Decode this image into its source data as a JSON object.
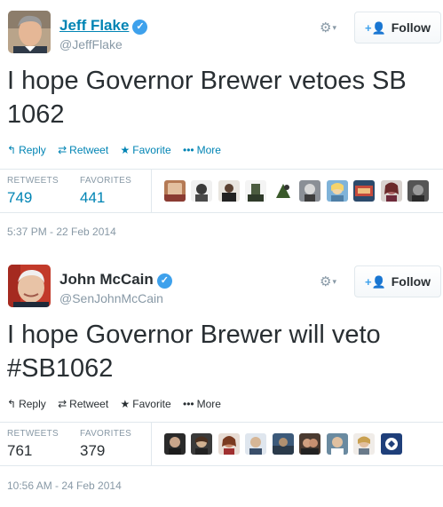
{
  "tweets": [
    {
      "author": {
        "name": "Jeff Flake",
        "handle": "@JeffFlake",
        "verified": true
      },
      "text": "I hope Governor Brewer vetoes SB 1062",
      "follow_label": "Follow",
      "actions": {
        "reply": "Reply",
        "retweet": "Retweet",
        "favorite": "Favorite",
        "more": "More"
      },
      "stats": {
        "retweets_label": "RETWEETS",
        "retweets": "749",
        "favorites_label": "FAVORITES",
        "favorites": "441"
      },
      "timestamp": "5:37 PM - 22 Feb 2014",
      "accent_color": "#0084b4"
    },
    {
      "author": {
        "name": "John McCain",
        "handle": "@SenJohnMcCain",
        "verified": true
      },
      "text": "I hope Governor Brewer will veto #SB1062",
      "follow_label": "Follow",
      "actions": {
        "reply": "Reply",
        "retweet": "Retweet",
        "favorite": "Favorite",
        "more": "More"
      },
      "stats": {
        "retweets_label": "RETWEETS",
        "retweets": "761",
        "favorites_label": "FAVORITES",
        "favorites": "379"
      },
      "timestamp": "10:56 AM - 24 Feb 2014",
      "accent_color": "#292f33"
    }
  ],
  "icons": {
    "verified": "verified-badge-icon",
    "gear": "gear-icon",
    "follow": "add-user-icon",
    "reply": "reply-icon",
    "retweet": "retweet-icon",
    "favorite": "star-icon",
    "more": "more-dots-icon"
  },
  "glyphs": {
    "verified": "✓",
    "gear": "⚙",
    "caret": "▾",
    "follow_plus": "+👤",
    "reply": "↰",
    "retweet": "⇄",
    "favorite": "★",
    "more": "•••"
  }
}
